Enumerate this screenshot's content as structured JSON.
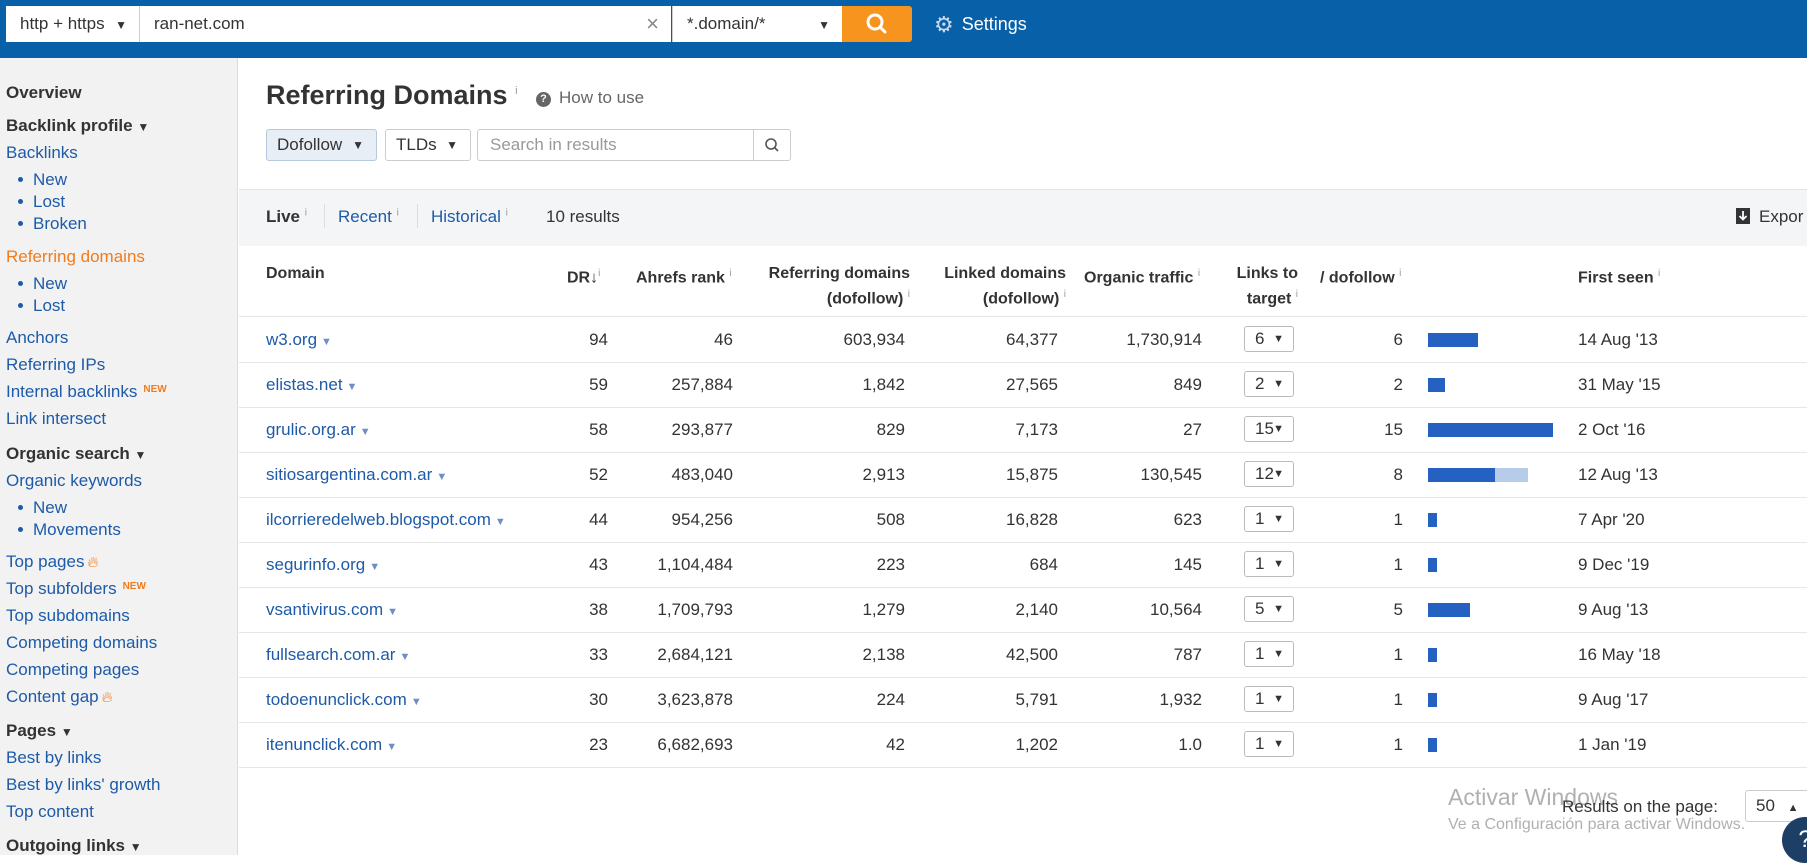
{
  "topbar": {
    "protocol": "http + https",
    "url": "ran-net.com",
    "mode": "*.domain/*",
    "settings_label": "Settings"
  },
  "sidebar": {
    "overview": "Overview",
    "backlink_profile": "Backlink profile",
    "backlinks": "Backlinks",
    "backlinks_new": "New",
    "backlinks_lost": "Lost",
    "backlinks_broken": "Broken",
    "referring_domains": "Referring domains",
    "rd_new": "New",
    "rd_lost": "Lost",
    "anchors": "Anchors",
    "referring_ips": "Referring IPs",
    "internal_backlinks": "Internal backlinks",
    "new_tag": "NEW",
    "link_intersect": "Link intersect",
    "organic_search": "Organic search",
    "organic_keywords": "Organic keywords",
    "ok_new": "New",
    "ok_movements": "Movements",
    "top_pages": "Top pages",
    "top_subfolders": "Top subfolders",
    "top_subdomains": "Top subdomains",
    "competing_domains": "Competing domains",
    "competing_pages": "Competing pages",
    "content_gap": "Content gap",
    "pages": "Pages",
    "best_by_links": "Best by links",
    "best_by_links_growth": "Best by links' growth",
    "top_content": "Top content",
    "outgoing_links": "Outgoing links"
  },
  "main": {
    "title": "Referring Domains",
    "info_mark": "i",
    "how_to_use": "How to use",
    "filter_dofollow": "Dofollow",
    "filter_tlds": "TLDs",
    "search_placeholder": "Search in results",
    "tab_live": "Live",
    "tab_recent": "Recent",
    "tab_historical": "Historical",
    "results_count": "10 results",
    "export_label": "Expor"
  },
  "table": {
    "headers": {
      "domain": "Domain",
      "dr": "DR",
      "ahrefs_rank": "Ahrefs rank",
      "ref_domains_1": "Referring domains",
      "ref_domains_2": "(dofollow)",
      "linked_domains_1": "Linked domains",
      "linked_domains_2": "(dofollow)",
      "organic_traffic": "Organic traffic",
      "links_to_1": "Links to",
      "links_to_2": "target",
      "dofollow": "/ dofollow",
      "first_seen": "First seen"
    },
    "rows": [
      {
        "domain": "w3.org",
        "dr": "94",
        "rank": "46",
        "ref": "603,934",
        "linked": "64,377",
        "traffic": "1,730,914",
        "links": "6",
        "dofollow": "6",
        "first_seen": "14 Aug '13"
      },
      {
        "domain": "elistas.net",
        "dr": "59",
        "rank": "257,884",
        "ref": "1,842",
        "linked": "27,565",
        "traffic": "849",
        "links": "2",
        "dofollow": "2",
        "first_seen": "31 May '15"
      },
      {
        "domain": "grulic.org.ar",
        "dr": "58",
        "rank": "293,877",
        "ref": "829",
        "linked": "7,173",
        "traffic": "27",
        "links": "15",
        "dofollow": "15",
        "first_seen": "2 Oct '16"
      },
      {
        "domain": "sitiosargentina.com.ar",
        "dr": "52",
        "rank": "483,040",
        "ref": "2,913",
        "linked": "15,875",
        "traffic": "130,545",
        "links": "12",
        "dofollow": "8",
        "first_seen": "12 Aug '13"
      },
      {
        "domain": "ilcorrieredelweb.blogspot.com",
        "dr": "44",
        "rank": "954,256",
        "ref": "508",
        "linked": "16,828",
        "traffic": "623",
        "links": "1",
        "dofollow": "1",
        "first_seen": "7 Apr '20"
      },
      {
        "domain": "segurinfo.org",
        "dr": "43",
        "rank": "1,104,484",
        "ref": "223",
        "linked": "684",
        "traffic": "145",
        "links": "1",
        "dofollow": "1",
        "first_seen": "9 Dec '19"
      },
      {
        "domain": "vsantivirus.com",
        "dr": "38",
        "rank": "1,709,793",
        "ref": "1,279",
        "linked": "2,140",
        "traffic": "10,564",
        "links": "5",
        "dofollow": "5",
        "first_seen": "9 Aug '13"
      },
      {
        "domain": "fullsearch.com.ar",
        "dr": "33",
        "rank": "2,684,121",
        "ref": "2,138",
        "linked": "42,500",
        "traffic": "787",
        "links": "1",
        "dofollow": "1",
        "first_seen": "16 May '18"
      },
      {
        "domain": "todoenunclick.com",
        "dr": "30",
        "rank": "3,623,878",
        "ref": "224",
        "linked": "5,791",
        "traffic": "1,932",
        "links": "1",
        "dofollow": "1",
        "first_seen": "9 Aug '17"
      },
      {
        "domain": "itenunclick.com",
        "dr": "23",
        "rank": "6,682,693",
        "ref": "42",
        "linked": "1,202",
        "traffic": "1.0",
        "links": "1",
        "dofollow": "1",
        "first_seen": "1 Jan '19"
      }
    ]
  },
  "footer": {
    "results_per_page_label": "Results on the page:",
    "results_per_page": "50",
    "watermark_1": "Activar Windows",
    "watermark_2": "Ve a Configuración para activar Windows.",
    "help": "?"
  },
  "colors": {
    "topbar": "#0860a8",
    "accent": "#f7941d",
    "link": "#1d5aa8",
    "active_nav": "#f27b1c",
    "bar_dofollow": "#2461c0",
    "bar_total": "#b7cce8"
  }
}
